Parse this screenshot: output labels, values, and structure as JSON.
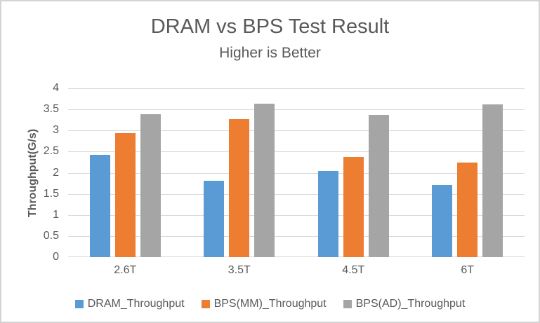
{
  "window": {
    "background": "#ffffff",
    "border_color": "#d4d4d4"
  },
  "chart_data": {
    "type": "bar",
    "title": "DRAM vs BPS Test Result",
    "subtitle": "Higher is Better",
    "ylabel": "Throughput(G/s)",
    "xlabel": "",
    "categories": [
      "2.6T",
      "3.5T",
      "4.5T",
      "6T"
    ],
    "series": [
      {
        "name": "DRAM_Throughput",
        "color": "#5B9BD5",
        "values": [
          2.42,
          1.81,
          2.05,
          1.71
        ]
      },
      {
        "name": "BPS(MM)_Throughput",
        "color": "#ED7D31",
        "values": [
          2.94,
          3.27,
          2.38,
          2.24
        ]
      },
      {
        "name": "BPS(AD)_Throughput",
        "color": "#A5A5A5",
        "values": [
          3.39,
          3.64,
          3.37,
          3.62
        ]
      }
    ],
    "ylim": [
      0,
      4
    ],
    "ytick_step": 0.5,
    "yticks": [
      "0",
      "0.5",
      "1",
      "1.5",
      "2",
      "2.5",
      "3",
      "3.5",
      "4"
    ],
    "grid": true,
    "gridline_color": "#d9d9d9",
    "legend_position": "bottom",
    "text_color": "#595959"
  }
}
